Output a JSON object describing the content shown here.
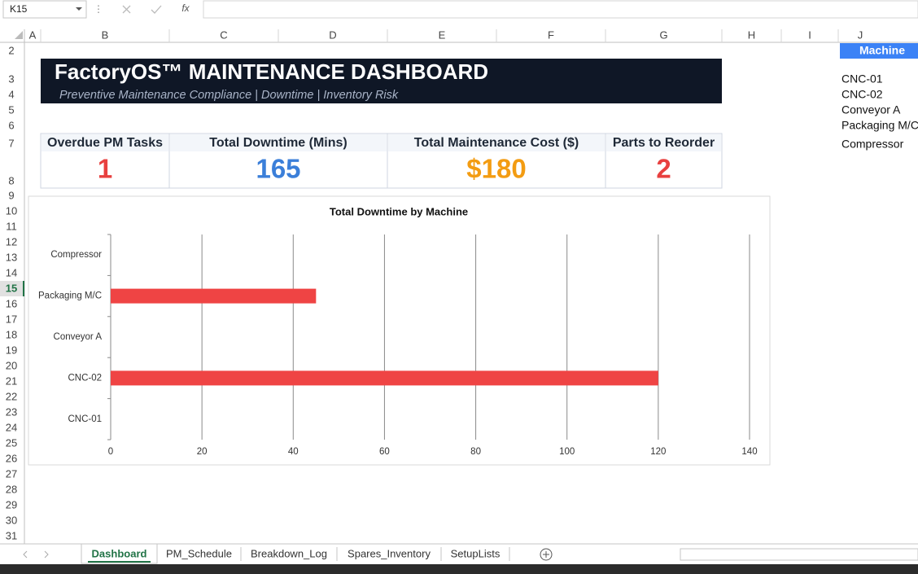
{
  "name_box": "K15",
  "formula_bar": {
    "function_icon": "fx"
  },
  "column_headers": [
    "A",
    "B",
    "C",
    "D",
    "E",
    "F",
    "G",
    "H",
    "I",
    "J"
  ],
  "row_headers": [
    "2",
    "3",
    "4",
    "5",
    "6",
    "7",
    "8",
    "9",
    "10",
    "11",
    "12",
    "13",
    "14",
    "15",
    "16",
    "17",
    "18",
    "19",
    "20",
    "21",
    "22",
    "23",
    "24",
    "25",
    "26",
    "27",
    "28",
    "29",
    "30",
    "31"
  ],
  "header": {
    "title": "FactoryOS™ MAINTENANCE DASHBOARD",
    "subtitle": "Preventive Maintenance Compliance | Downtime | Inventory Risk"
  },
  "kpis": [
    {
      "label": "Overdue PM Tasks",
      "value": "1",
      "color": "#e8403f"
    },
    {
      "label": "Total Downtime (Mins)",
      "value": "165",
      "color": "#3b7fd9"
    },
    {
      "label": "Total Maintenance Cost ($)",
      "value": "$180",
      "color": "#f39c12"
    },
    {
      "label": "Parts to Reorder",
      "value": "2",
      "color": "#e8403f"
    }
  ],
  "lookup": {
    "header": "Machine",
    "items": [
      "CNC-01",
      "CNC-02",
      "Conveyor A",
      "Packaging M/C",
      "Compressor"
    ]
  },
  "chart_data": {
    "type": "hbar",
    "title": "Total Downtime by Machine",
    "categories": [
      "CNC-01",
      "CNC-02",
      "Conveyor A",
      "Packaging M/C",
      "Compressor"
    ],
    "values": [
      0,
      120,
      0,
      45,
      0
    ],
    "color": "#ef4444",
    "xlim": [
      0,
      140
    ],
    "xticks": [
      0,
      20,
      40,
      60,
      80,
      100,
      120,
      140
    ],
    "grid": true
  },
  "sheet_tabs": [
    "Dashboard",
    "PM_Schedule",
    "Breakdown_Log",
    "Spares_Inventory",
    "SetupLists"
  ]
}
